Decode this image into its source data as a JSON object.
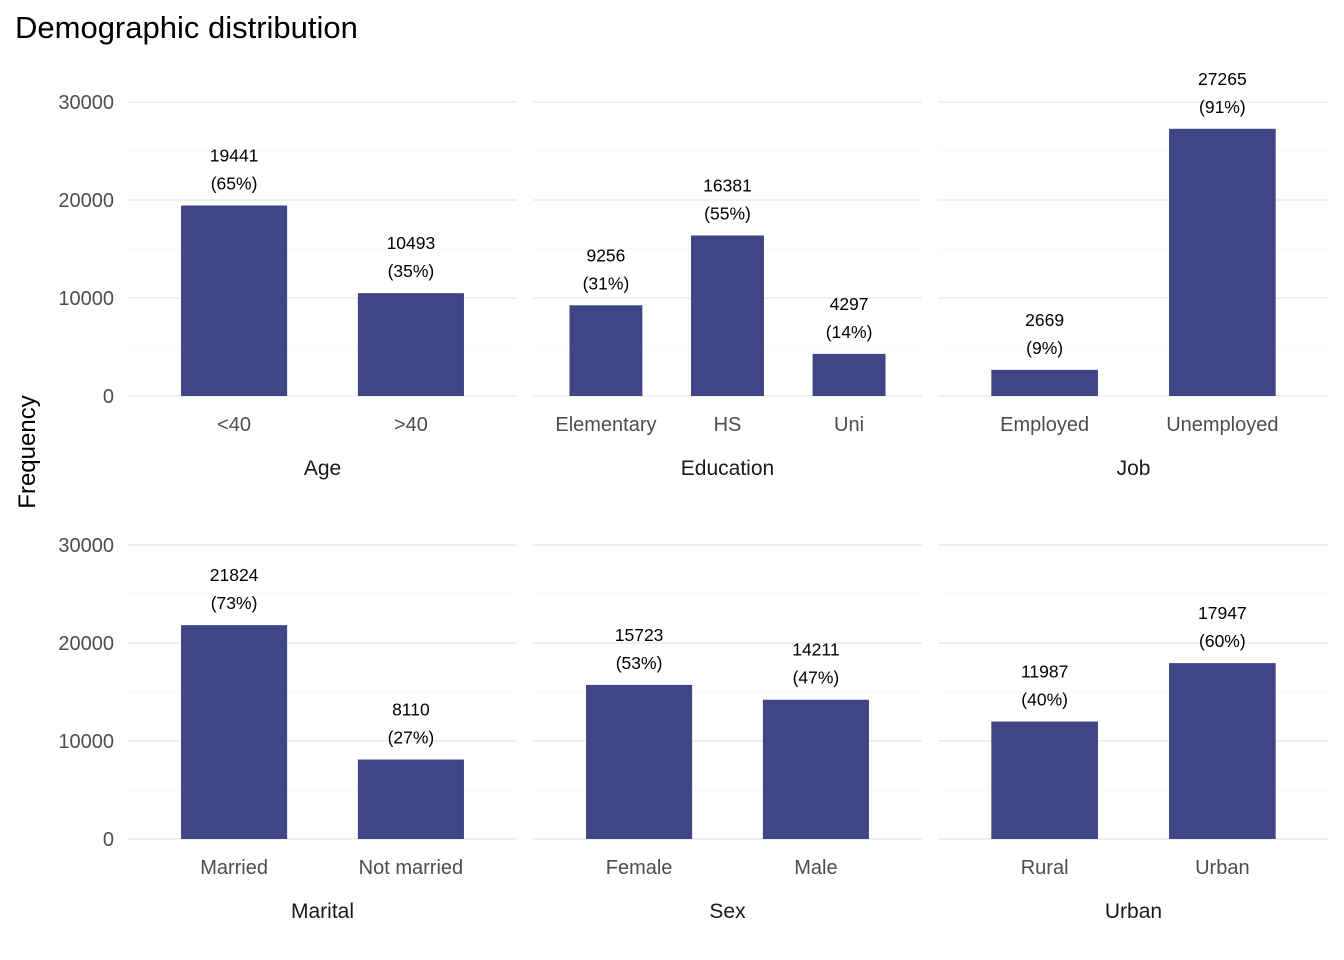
{
  "chart_data": {
    "type": "bar",
    "title": "Demographic distribution",
    "ylabel": "Frequency",
    "ylim": [
      0,
      30000
    ],
    "yticks": [
      0,
      10000,
      20000,
      30000
    ],
    "grid": true,
    "bar_color": "#404585",
    "facets": [
      {
        "name": "Age",
        "categories": [
          "<40",
          ">40"
        ],
        "values": [
          19441,
          10493
        ],
        "labels": [
          "19441",
          "10493"
        ],
        "percents": [
          "(65%)",
          "(35%)"
        ]
      },
      {
        "name": "Education",
        "categories": [
          "Elementary",
          "HS",
          "Uni"
        ],
        "values": [
          9256,
          16381,
          4297
        ],
        "labels": [
          "9256",
          "16381",
          "4297"
        ],
        "percents": [
          "(31%)",
          "(55%)",
          "(14%)"
        ]
      },
      {
        "name": "Job",
        "categories": [
          "Employed",
          "Unemployed"
        ],
        "values": [
          2669,
          27265
        ],
        "labels": [
          "2669",
          "27265"
        ],
        "percents": [
          "(9%)",
          "(91%)"
        ]
      },
      {
        "name": "Marital",
        "categories": [
          "Married",
          "Not married"
        ],
        "values": [
          21824,
          8110
        ],
        "labels": [
          "21824",
          "8110"
        ],
        "percents": [
          "(73%)",
          "(27%)"
        ]
      },
      {
        "name": "Sex",
        "categories": [
          "Female",
          "Male"
        ],
        "values": [
          15723,
          14211
        ],
        "labels": [
          "15723",
          "14211"
        ],
        "percents": [
          "(53%)",
          "(47%)"
        ]
      },
      {
        "name": "Urban",
        "categories": [
          "Rural",
          "Urban"
        ],
        "values": [
          11987,
          17947
        ],
        "labels": [
          "11987",
          "17947"
        ],
        "percents": [
          "(40%)",
          "(60%)"
        ]
      }
    ]
  }
}
